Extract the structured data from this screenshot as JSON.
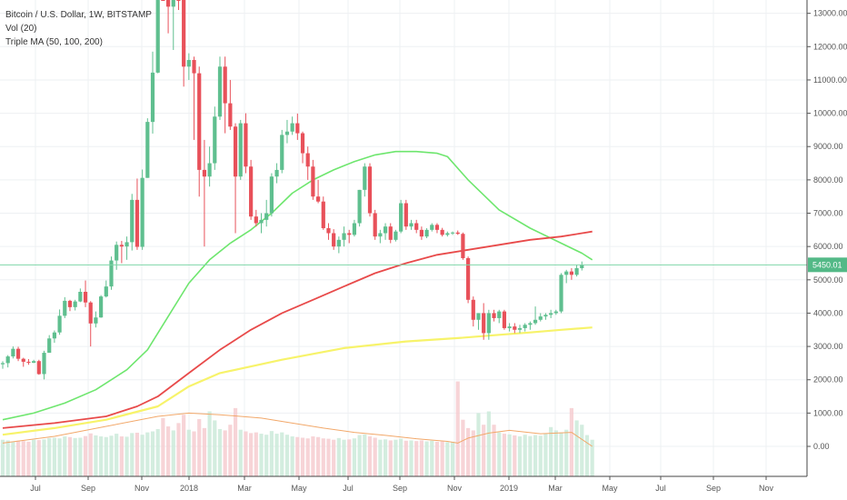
{
  "legend": {
    "symbol": "Bitcoin / U.S. Dollar, 1W, BITSTAMP",
    "vol": "Vol (20)",
    "ma": "Triple MA (50, 100, 200)"
  },
  "colors": {
    "up": "#5fbf8f",
    "down": "#e8515a",
    "ma50": "#6ee66e",
    "ma100": "#e84a4a",
    "ma200": "#f7f36a",
    "vol_ma": "#f2a86a",
    "price_line": "#7fd6a8",
    "price_tag": "#53b987",
    "grid": "#eef0f3"
  },
  "chart_data": {
    "type": "candlestick",
    "title": "Bitcoin / U.S. Dollar, 1W, BITSTAMP",
    "y_axis": {
      "ticks": [
        "13000.00",
        "12000.00",
        "11000.00",
        "10000.00",
        "9000.00",
        "8000.00",
        "7000.00",
        "6000.00",
        "5000.00",
        "4000.00",
        "3000.00",
        "2000.00",
        "1000.00",
        "0.00"
      ],
      "min": -900,
      "max": 13400
    },
    "x_axis": {
      "ticks": [
        "Jul",
        "Sep",
        "Nov",
        "2018",
        "Mar",
        "May",
        "Jul",
        "Sep",
        "Nov",
        "2019",
        "Mar",
        "May",
        "Jul",
        "Sep",
        "Nov"
      ]
    },
    "last_price": 5450.01,
    "last_price_label": "5450.01",
    "candles": [
      [
        2465,
        2555,
        2330,
        2500
      ],
      [
        2500,
        2740,
        2370,
        2700
      ],
      [
        2700,
        3000,
        2640,
        2930
      ],
      [
        2930,
        2990,
        2560,
        2630
      ],
      [
        2630,
        2660,
        2390,
        2540
      ],
      [
        2540,
        2620,
        2450,
        2510
      ],
      [
        2510,
        2600,
        2500,
        2560
      ],
      [
        2560,
        2600,
        2150,
        2170
      ],
      [
        2170,
        2870,
        2010,
        2810
      ],
      [
        2810,
        3340,
        2810,
        3240
      ],
      [
        3240,
        3480,
        3110,
        3420
      ],
      [
        3420,
        4110,
        3350,
        3920
      ],
      [
        3920,
        4480,
        3850,
        4370
      ],
      [
        4370,
        4400,
        4060,
        4180
      ],
      [
        4180,
        4400,
        4080,
        4350
      ],
      [
        4350,
        4740,
        4330,
        4640
      ],
      [
        4640,
        4980,
        4180,
        4320
      ],
      [
        4320,
        4360,
        3000,
        3690
      ],
      [
        3690,
        4050,
        3570,
        3870
      ],
      [
        3870,
        4540,
        3860,
        4500
      ],
      [
        4500,
        4980,
        4470,
        4800
      ],
      [
        4800,
        5700,
        4700,
        5580
      ],
      [
        5580,
        6150,
        5300,
        6050
      ],
      [
        6050,
        6170,
        5500,
        6000
      ],
      [
        6000,
        6300,
        5600,
        6130
      ],
      [
        6130,
        7580,
        5880,
        7400
      ],
      [
        7400,
        8040,
        5900,
        5990
      ],
      [
        5990,
        8310,
        5900,
        8060
      ],
      [
        8060,
        9850,
        8060,
        9740
      ],
      [
        9740,
        11850,
        9390,
        11220
      ],
      [
        11220,
        17000,
        11200,
        16400
      ],
      [
        16400,
        19800,
        13500,
        15200
      ],
      [
        15200,
        17300,
        12400,
        13200
      ],
      [
        13200,
        14870,
        11900,
        13800
      ],
      [
        13800,
        17200,
        13100,
        13500
      ],
      [
        13500,
        14300,
        10800,
        11400
      ],
      [
        11400,
        11800,
        11000,
        11600
      ],
      [
        11600,
        11700,
        9200,
        11200
      ],
      [
        11200,
        11400,
        7500,
        8300
      ],
      [
        8300,
        9200,
        6000,
        8100
      ],
      [
        8100,
        9000,
        7800,
        8500
      ],
      [
        8500,
        10200,
        8300,
        9900
      ],
      [
        9900,
        11700,
        9800,
        11400
      ],
      [
        11400,
        11700,
        9400,
        10300
      ],
      [
        10300,
        11000,
        9500,
        9600
      ],
      [
        9600,
        9700,
        6400,
        8100
      ],
      [
        8100,
        9800,
        8000,
        9700
      ],
      [
        9700,
        10000,
        8200,
        8400
      ],
      [
        8400,
        8600,
        6800,
        6900
      ],
      [
        6900,
        7100,
        6600,
        6700
      ],
      [
        6700,
        7000,
        6400,
        6800
      ],
      [
        6800,
        7400,
        6600,
        7000
      ],
      [
        7000,
        8200,
        6900,
        8100
      ],
      [
        8100,
        8500,
        7900,
        8300
      ],
      [
        8300,
        9500,
        8200,
        9350
      ],
      [
        9350,
        9800,
        9100,
        9450
      ],
      [
        9450,
        9900,
        9350,
        9700
      ],
      [
        9700,
        9990,
        9200,
        9400
      ],
      [
        9400,
        9450,
        8500,
        8800
      ],
      [
        8800,
        9000,
        8000,
        8400
      ],
      [
        8400,
        8600,
        7400,
        7500
      ],
      [
        7500,
        8000,
        7300,
        7350
      ],
      [
        7350,
        7500,
        6500,
        6550
      ],
      [
        6550,
        6700,
        6200,
        6400
      ],
      [
        6400,
        6520,
        5900,
        6000
      ],
      [
        6000,
        6300,
        5800,
        6200
      ],
      [
        6200,
        6600,
        6000,
        6400
      ],
      [
        6400,
        6500,
        6100,
        6350
      ],
      [
        6350,
        6800,
        6300,
        6700
      ],
      [
        6700,
        7700,
        6600,
        7700
      ],
      [
        7700,
        8500,
        7500,
        8400
      ],
      [
        8400,
        8500,
        6900,
        7000
      ],
      [
        7000,
        7100,
        6200,
        6300
      ],
      [
        6300,
        6500,
        6100,
        6400
      ],
      [
        6400,
        6700,
        6200,
        6600
      ],
      [
        6600,
        6700,
        6100,
        6200
      ],
      [
        6200,
        6500,
        6150,
        6450
      ],
      [
        6450,
        7400,
        6400,
        7300
      ],
      [
        7300,
        7400,
        6500,
        6600
      ],
      [
        6600,
        6800,
        6500,
        6700
      ],
      [
        6700,
        6800,
        6400,
        6500
      ],
      [
        6500,
        6600,
        6200,
        6300
      ],
      [
        6300,
        6550,
        6250,
        6500
      ],
      [
        6500,
        6700,
        6450,
        6650
      ],
      [
        6650,
        6700,
        6400,
        6500
      ],
      [
        6500,
        6560,
        6300,
        6350
      ],
      [
        6350,
        6450,
        6300,
        6400
      ],
      [
        6400,
        6450,
        6350,
        6420
      ],
      [
        6420,
        6480,
        6350,
        6380
      ],
      [
        6380,
        6420,
        5600,
        5650
      ],
      [
        5650,
        5700,
        4300,
        4400
      ],
      [
        4400,
        4500,
        3600,
        3800
      ],
      [
        3800,
        4000,
        3500,
        4000
      ],
      [
        4000,
        4300,
        3200,
        3400
      ],
      [
        3400,
        4100,
        3200,
        4000
      ],
      [
        4000,
        4100,
        3750,
        3850
      ],
      [
        3850,
        4100,
        3700,
        4050
      ],
      [
        4050,
        4100,
        3500,
        3550
      ],
      [
        3550,
        3700,
        3450,
        3600
      ],
      [
        3600,
        3700,
        3400,
        3500
      ],
      [
        3500,
        3650,
        3400,
        3550
      ],
      [
        3550,
        3700,
        3450,
        3650
      ],
      [
        3650,
        3750,
        3500,
        3700
      ],
      [
        3700,
        4200,
        3650,
        3800
      ],
      [
        3800,
        4000,
        3750,
        3900
      ],
      [
        3900,
        4000,
        3800,
        3950
      ],
      [
        3950,
        4100,
        3850,
        4000
      ],
      [
        4000,
        4100,
        3950,
        4050
      ],
      [
        4050,
        5200,
        4000,
        5150
      ],
      [
        5150,
        5300,
        4900,
        5250
      ],
      [
        5250,
        5350,
        5000,
        5150
      ],
      [
        5150,
        5450,
        5100,
        5350
      ],
      [
        5350,
        5550,
        5280,
        5450
      ]
    ],
    "series": [
      {
        "name": "MA 50",
        "points": [
          [
            0,
            800
          ],
          [
            6,
            1000
          ],
          [
            12,
            1300
          ],
          [
            18,
            1700
          ],
          [
            24,
            2300
          ],
          [
            28,
            2900
          ],
          [
            32,
            3900
          ],
          [
            36,
            4900
          ],
          [
            40,
            5600
          ],
          [
            44,
            6100
          ],
          [
            48,
            6500
          ],
          [
            52,
            7000
          ],
          [
            56,
            7600
          ],
          [
            60,
            8000
          ],
          [
            64,
            8300
          ],
          [
            68,
            8550
          ],
          [
            72,
            8750
          ],
          [
            76,
            8850
          ],
          [
            80,
            8850
          ],
          [
            84,
            8800
          ],
          [
            86,
            8700
          ],
          [
            90,
            8000
          ],
          [
            96,
            7100
          ],
          [
            102,
            6550
          ],
          [
            108,
            6100
          ],
          [
            112,
            5800
          ],
          [
            114,
            5600
          ]
        ]
      },
      {
        "name": "MA 100",
        "points": [
          [
            0,
            550
          ],
          [
            10,
            700
          ],
          [
            20,
            900
          ],
          [
            26,
            1200
          ],
          [
            30,
            1500
          ],
          [
            36,
            2200
          ],
          [
            42,
            2900
          ],
          [
            48,
            3500
          ],
          [
            54,
            4000
          ],
          [
            60,
            4400
          ],
          [
            66,
            4800
          ],
          [
            72,
            5200
          ],
          [
            78,
            5500
          ],
          [
            84,
            5750
          ],
          [
            90,
            5900
          ],
          [
            96,
            6050
          ],
          [
            102,
            6200
          ],
          [
            108,
            6300
          ],
          [
            114,
            6450
          ]
        ]
      },
      {
        "name": "MA 200",
        "points": [
          [
            0,
            350
          ],
          [
            10,
            550
          ],
          [
            20,
            800
          ],
          [
            30,
            1200
          ],
          [
            36,
            1800
          ],
          [
            42,
            2200
          ],
          [
            54,
            2600
          ],
          [
            66,
            2950
          ],
          [
            78,
            3150
          ],
          [
            88,
            3250
          ],
          [
            96,
            3350
          ],
          [
            102,
            3420
          ],
          [
            108,
            3500
          ],
          [
            114,
            3570
          ]
        ]
      },
      {
        "name": "Vol MA",
        "points": [
          [
            0,
            100
          ],
          [
            10,
            300
          ],
          [
            20,
            600
          ],
          [
            30,
            900
          ],
          [
            36,
            1000
          ],
          [
            42,
            950
          ],
          [
            50,
            850
          ],
          [
            56,
            700
          ],
          [
            62,
            550
          ],
          [
            68,
            420
          ],
          [
            74,
            330
          ],
          [
            80,
            230
          ],
          [
            86,
            150
          ],
          [
            88,
            100
          ],
          [
            90,
            250
          ],
          [
            94,
            400
          ],
          [
            98,
            480
          ],
          [
            104,
            380
          ],
          [
            110,
            420
          ],
          [
            114,
            0
          ]
        ]
      }
    ],
    "volume": [
      200,
      180,
      150,
      170,
      160,
      140,
      200,
      190,
      210,
      250,
      260,
      240,
      300,
      280,
      250,
      260,
      310,
      390,
      330,
      300,
      280,
      320,
      380,
      300,
      290,
      400,
      410,
      350,
      420,
      450,
      520,
      850,
      600,
      480,
      700,
      950,
      500,
      450,
      820,
      550,
      1050,
      780,
      520,
      480,
      650,
      1150,
      500,
      450,
      400,
      420,
      380,
      350,
      460,
      380,
      420,
      350,
      300,
      280,
      260,
      240,
      300,
      280,
      240,
      230,
      200,
      250,
      200,
      210,
      240,
      340,
      360,
      300,
      260,
      200,
      210,
      180,
      200,
      230,
      170,
      180,
      160,
      180,
      150,
      170,
      140,
      150,
      130,
      140,
      1950,
      800,
      550,
      480,
      1000,
      650,
      1050,
      650,
      420,
      380,
      360,
      330,
      300,
      350,
      310,
      340,
      320,
      380,
      580,
      480,
      420,
      500,
      1150,
      780,
      650,
      340,
      200
    ]
  }
}
